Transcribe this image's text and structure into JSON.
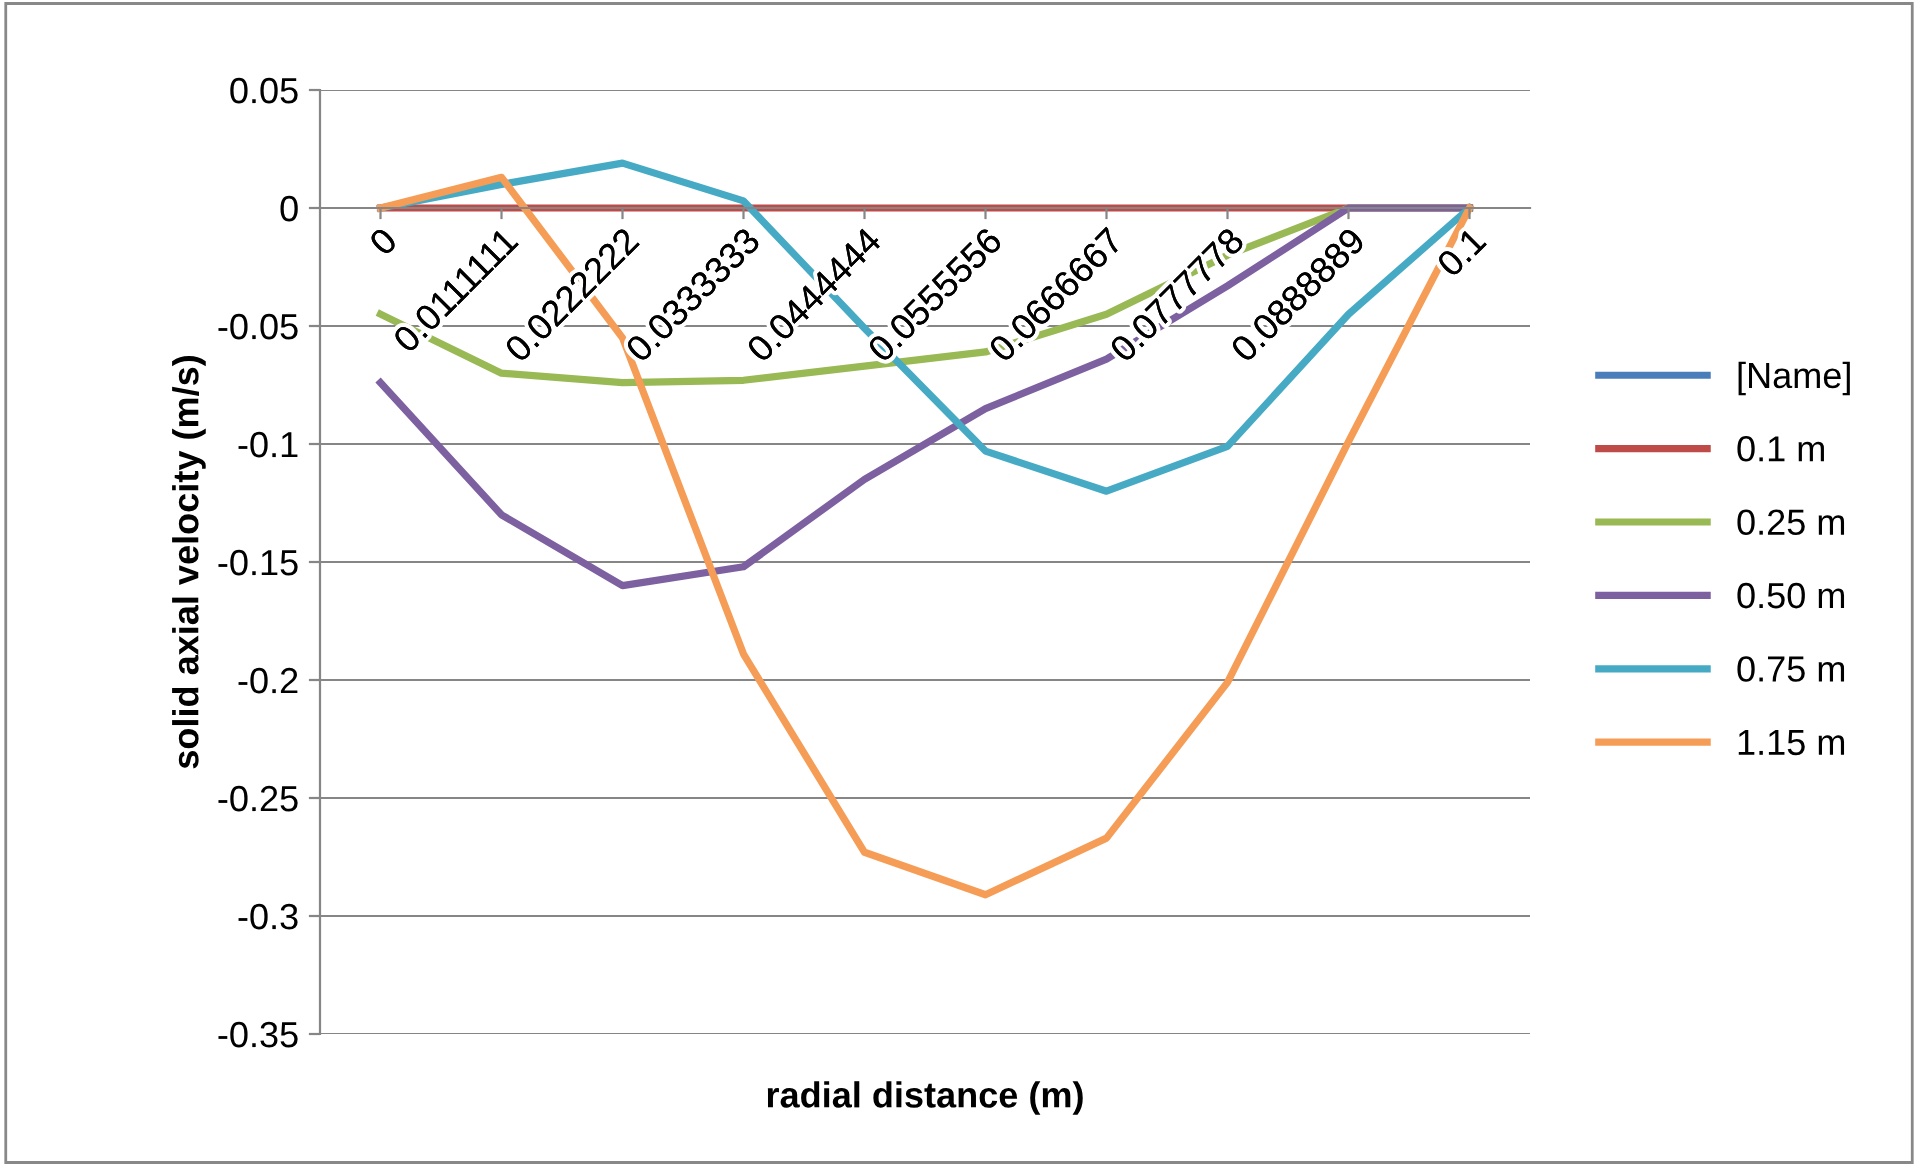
{
  "chart_data": {
    "type": "line",
    "xlabel": "radial distance (m)",
    "ylabel": "solid axial velocity (m/s)",
    "categories": [
      "0",
      "0.0111111",
      "0.0222222",
      "0.0333333",
      "0.0444444",
      "0.0555556",
      "0.0666667",
      "0.0777778",
      "0.0888889",
      "0.1"
    ],
    "series": [
      {
        "name": "[Name]",
        "color": "#4a7ebb",
        "values": [
          null,
          null,
          null,
          null,
          null,
          null,
          null,
          null,
          null,
          null
        ]
      },
      {
        "name": "0.1 m",
        "color": "#be4b48",
        "values": [
          0,
          0,
          0,
          0,
          0,
          0,
          0,
          0,
          0,
          0
        ]
      },
      {
        "name": "0.25 m",
        "color": "#98b954",
        "values": [
          -0.045,
          -0.07,
          -0.074,
          -0.073,
          -0.067,
          -0.061,
          -0.045,
          -0.02,
          0,
          0
        ]
      },
      {
        "name": "0.50 m",
        "color": "#7d60a0",
        "values": [
          -0.074,
          -0.13,
          -0.16,
          -0.152,
          -0.115,
          -0.085,
          -0.064,
          -0.033,
          0,
          0
        ]
      },
      {
        "name": "0.75 m",
        "color": "#46aac5",
        "values": [
          0,
          0.01,
          0.019,
          0.003,
          -0.051,
          -0.103,
          -0.12,
          -0.101,
          -0.045,
          0
        ]
      },
      {
        "name": "1.15 m",
        "color": "#f59d56",
        "values": [
          0,
          0.013,
          -0.055,
          -0.189,
          -0.273,
          -0.291,
          -0.267,
          -0.201,
          -0.099,
          0
        ]
      }
    ],
    "ylim": [
      -0.35,
      0.05
    ],
    "yticks": [
      -0.35,
      -0.3,
      -0.25,
      -0.2,
      -0.15,
      -0.1,
      -0.05,
      0,
      0.05
    ],
    "grid": "y",
    "legend": "right",
    "marker": "none",
    "line_style": "solid"
  }
}
